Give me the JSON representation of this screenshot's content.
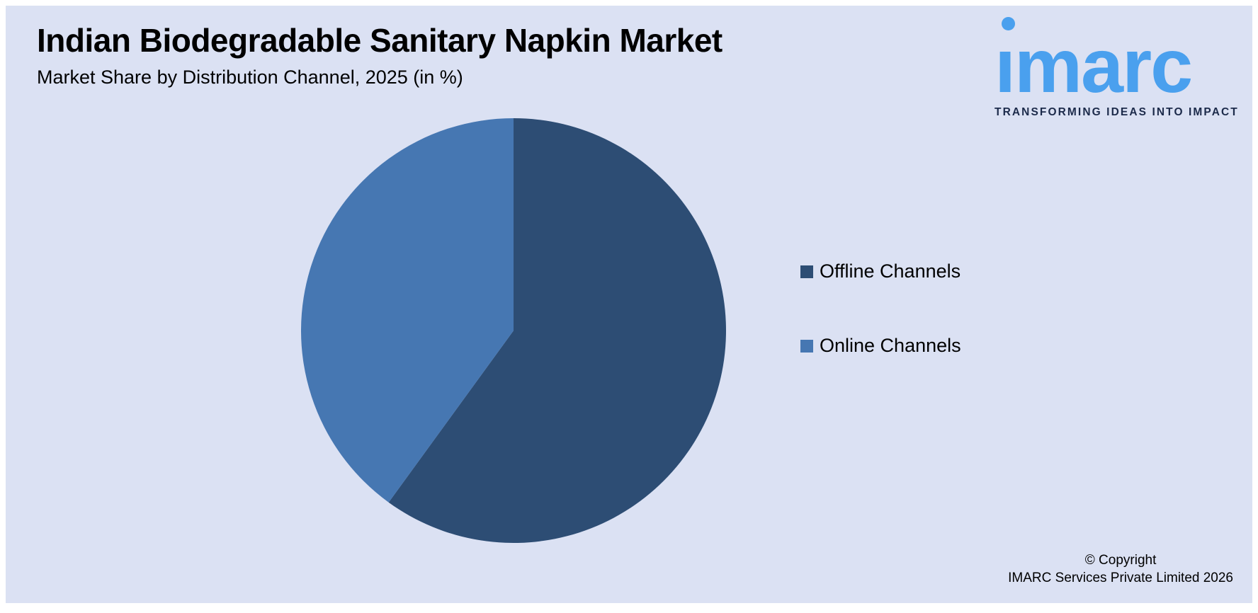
{
  "header": {
    "title": "Indian Biodegradable Sanitary Napkin Market",
    "subtitle": "Market Share by Distribution Channel, 2025 (in %)"
  },
  "logo": {
    "wordmark": "imarc",
    "wordmark_display": "ımarc",
    "tagline": "TRANSFORMING IDEAS INTO IMPACT",
    "brand_color": "#4aa0ee",
    "tagline_color": "#1c2a4a"
  },
  "chart_data": {
    "type": "pie",
    "title": "Market Share by Distribution Channel, 2025 (in %)",
    "categories": [
      "Offline Channels",
      "Online Channels"
    ],
    "values": [
      60,
      40
    ],
    "colors": [
      "#2d4d74",
      "#4677b2"
    ],
    "start_angle_deg": -90,
    "direction": "clockwise",
    "legend_position": "right",
    "data_labels": false
  },
  "footer": {
    "copyright_line1": "© Copyright",
    "copyright_line2": "IMARC Services Private Limited 2026"
  },
  "colors": {
    "panel_background": "#dbe1f3",
    "page_background": "#ffffff",
    "text": "#000000"
  }
}
